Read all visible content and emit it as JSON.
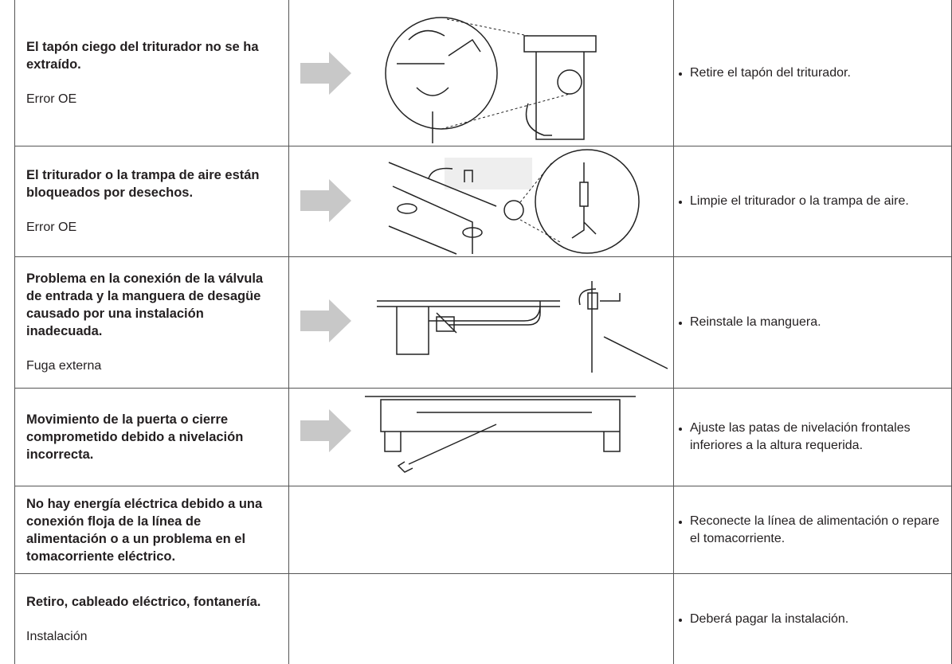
{
  "rows": [
    {
      "problem": "El tapón ciego del triturador no se ha extraído.",
      "category": "Error OE",
      "solution": "Retire el tapón del triturador."
    },
    {
      "problem": "El triturador o la trampa de aire están bloqueados por desechos.",
      "category": "Error OE",
      "solution": "Limpie el triturador o la trampa de aire."
    },
    {
      "problem": "Problema en la conexión de la válvula de entrada y la manguera de desagüe causado por una instalación inadecuada.",
      "category": "Fuga externa",
      "solution": "Reinstale la manguera."
    },
    {
      "problem": "Movimiento de la puerta o cierre comprometido debido a nivelación incorrecta.",
      "solution": "Ajuste las patas de nivelación frontales inferiores a la altura requerida."
    },
    {
      "problem": "No hay energía eléctrica debido a una conexión floja de la línea de alimentación o a un problema en el tomacorriente eléctrico.",
      "solution": "Reconecte la línea de alimentación o repare el tomacorriente."
    },
    {
      "problem": "Retiro, cableado eléctrico, fontanería.",
      "category": "Instalación",
      "solution": "Deberá pagar la instalación."
    }
  ]
}
